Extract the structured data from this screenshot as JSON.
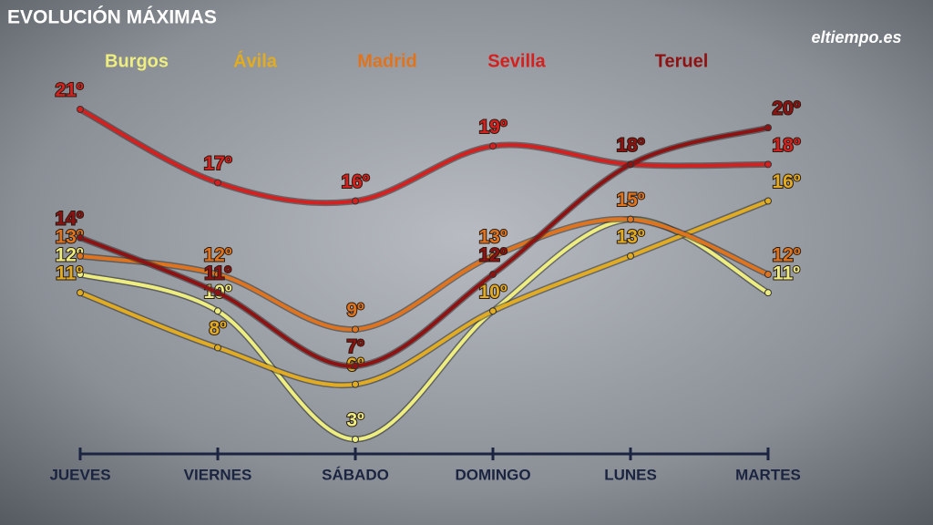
{
  "chart_data": {
    "type": "line",
    "title": "EVOLUCIÓN MÁXIMAS",
    "logo": "eltiempo.es",
    "categories": [
      "JUEVES",
      "VIERNES",
      "SÁBADO",
      "DOMINGO",
      "LUNES",
      "MARTES"
    ],
    "series": [
      {
        "name": "Burgos",
        "color": "#eeee80",
        "values": [
          12,
          10,
          3,
          10,
          15,
          11
        ],
        "value_labels": [
          "12º",
          "10º",
          "3º",
          null,
          null,
          "11º"
        ]
      },
      {
        "name": "Ávila",
        "color": "#e2ac22",
        "values": [
          11,
          8,
          6,
          10,
          13,
          16
        ],
        "value_labels": [
          "11º",
          "8º",
          "6º",
          "10º",
          "13º",
          "16º"
        ]
      },
      {
        "name": "Madrid",
        "color": "#e0741e",
        "values": [
          13,
          12,
          9,
          13,
          15,
          12
        ],
        "value_labels": [
          "13º",
          "12º",
          "9º",
          "13º",
          "15º",
          "12º"
        ]
      },
      {
        "name": "Sevilla",
        "color": "#d4201e",
        "values": [
          21,
          17,
          16,
          19,
          18,
          18
        ],
        "value_labels": [
          "21º",
          "17º",
          "16º",
          "19º",
          null,
          "18º"
        ]
      },
      {
        "name": "Teruel",
        "color": "#8e1212",
        "values": [
          14,
          11,
          7,
          12,
          18,
          20
        ],
        "value_labels": [
          "14º",
          "11º",
          "7º",
          "12º",
          "18º",
          "20º"
        ]
      }
    ]
  }
}
